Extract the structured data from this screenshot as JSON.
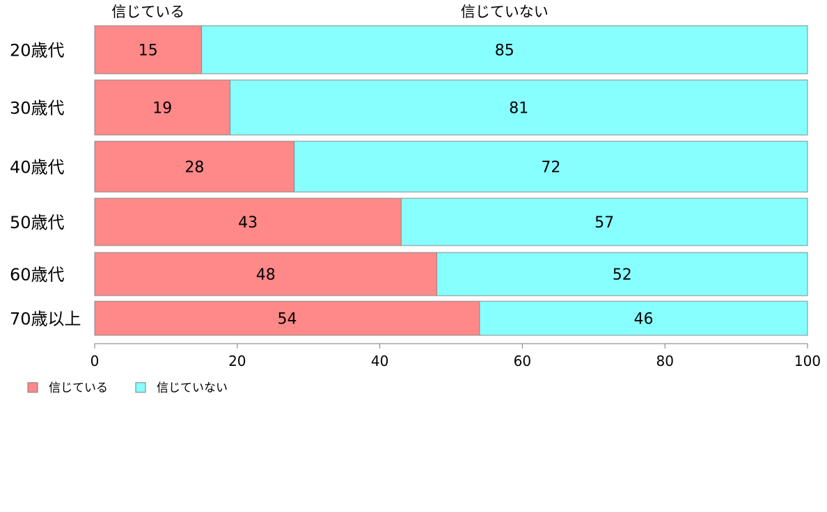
{
  "chart_data": {
    "type": "bar",
    "orientation": "horizontal",
    "stacked": true,
    "categories": [
      "20歳代",
      "30歳代",
      "40歳代",
      "50歳代",
      "60歳代",
      "70歳以上"
    ],
    "series": [
      {
        "name": "信じている",
        "values": [
          15,
          19,
          28,
          43,
          48,
          54
        ],
        "color": "#ff8888"
      },
      {
        "name": "信じていない",
        "values": [
          85,
          81,
          72,
          57,
          52,
          46
        ],
        "color": "#88ffff"
      }
    ],
    "segment_labels": [
      [
        "15",
        "19",
        "28",
        "43",
        "48",
        "54"
      ],
      [
        "85",
        "81",
        "72",
        "57",
        "52",
        "46"
      ]
    ],
    "xlim": [
      0,
      100
    ],
    "xticks": [
      0,
      20,
      40,
      60,
      80,
      100
    ],
    "xtick_labels": [
      "0",
      "20",
      "40",
      "60",
      "80",
      "100"
    ],
    "column_headers": [
      "信じている",
      "信じていない"
    ],
    "legend": {
      "position": "bottom-left",
      "entries": [
        "信じている",
        "信じていない"
      ]
    },
    "grid": false
  }
}
